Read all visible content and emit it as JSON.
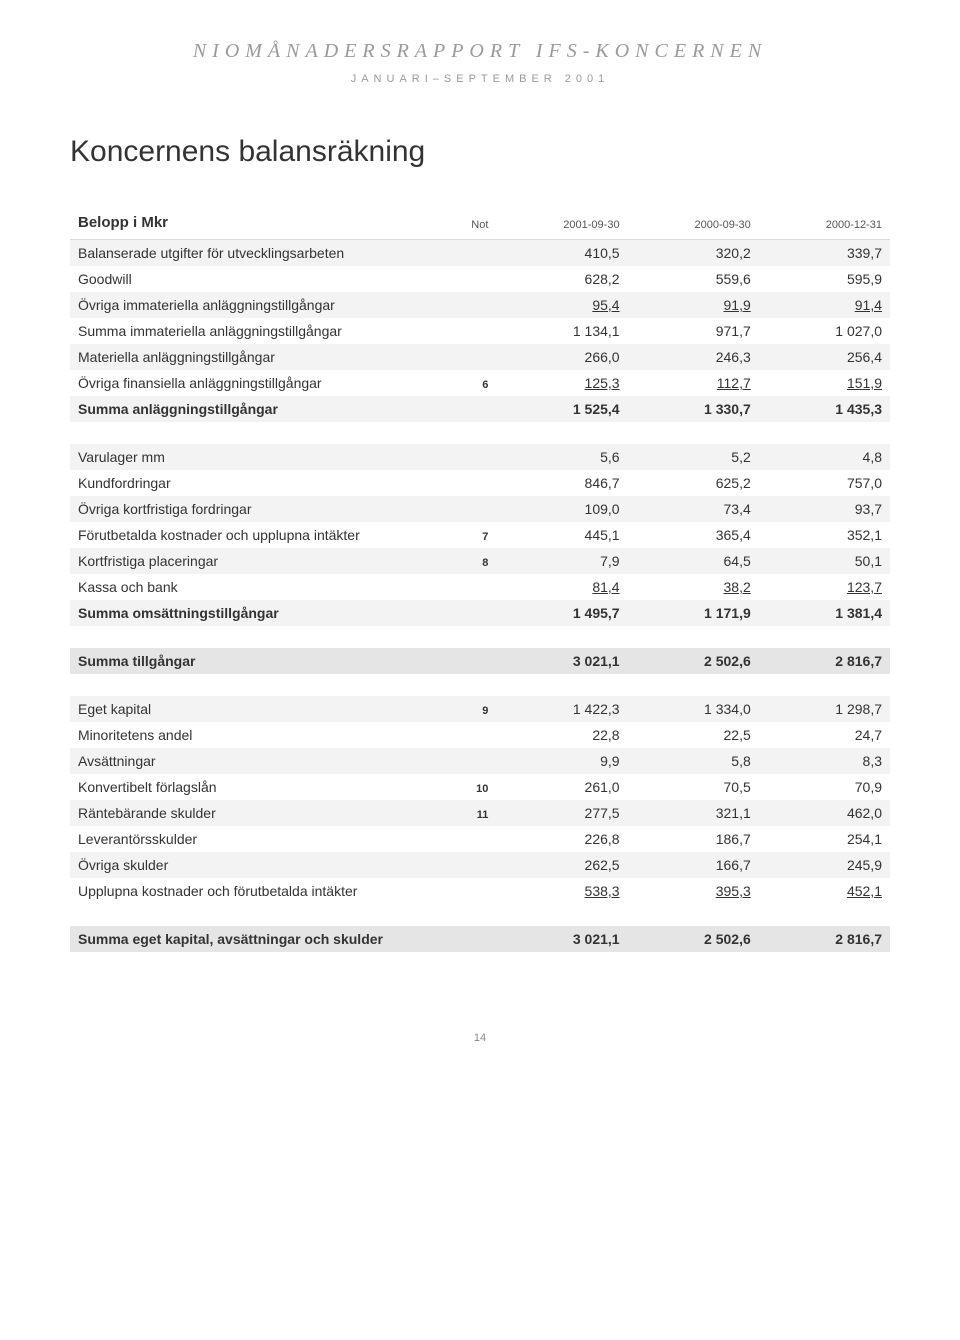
{
  "header": {
    "line1": "NIOMÅNADERSRAPPORT IFS-KONCERNEN",
    "line2": "JANUARI–SEPTEMBER 2001"
  },
  "title": "Koncernens balansräkning",
  "table": {
    "head": {
      "label": "Belopp i Mkr",
      "note": "Not",
      "c1": "2001-09-30",
      "c2": "2000-09-30",
      "c3": "2000-12-31"
    },
    "rows": [
      {
        "type": "light",
        "label": "Balanserade utgifter för utvecklingsarbeten",
        "note": "",
        "c1": "410,5",
        "c2": "320,2",
        "c3": "339,7"
      },
      {
        "type": "plain",
        "label": "Goodwill",
        "note": "",
        "c1": "628,2",
        "c2": "559,6",
        "c3": "595,9"
      },
      {
        "type": "light underline",
        "label": "Övriga immateriella anläggningstillgångar",
        "note": "",
        "c1": "95,4",
        "c2": "91,9",
        "c3": "91,4"
      },
      {
        "type": "plain",
        "label": "Summa immateriella anläggningstillgångar",
        "note": "",
        "c1": "1 134,1",
        "c2": "971,7",
        "c3": "1 027,0"
      },
      {
        "type": "light",
        "label": "Materiella anläggningstillgångar",
        "note": "",
        "c1": "266,0",
        "c2": "246,3",
        "c3": "256,4"
      },
      {
        "type": "plain underline",
        "label": "Övriga finansiella anläggningstillgångar",
        "note": "6",
        "c1": "125,3",
        "c2": "112,7",
        "c3": "151,9"
      },
      {
        "type": "light bold",
        "label": "Summa anläggningstillgångar",
        "note": "",
        "c1": "1 525,4",
        "c2": "1 330,7",
        "c3": "1 435,3"
      },
      {
        "type": "spacer"
      },
      {
        "type": "light",
        "label": "Varulager mm",
        "note": "",
        "c1": "5,6",
        "c2": "5,2",
        "c3": "4,8"
      },
      {
        "type": "plain",
        "label": "Kundfordringar",
        "note": "",
        "c1": "846,7",
        "c2": "625,2",
        "c3": "757,0"
      },
      {
        "type": "light",
        "label": "Övriga kortfristiga fordringar",
        "note": "",
        "c1": "109,0",
        "c2": "73,4",
        "c3": "93,7"
      },
      {
        "type": "plain",
        "label": "Förutbetalda kostnader och upplupna intäkter",
        "note": "7",
        "c1": "445,1",
        "c2": "365,4",
        "c3": "352,1"
      },
      {
        "type": "light",
        "label": "Kortfristiga placeringar",
        "note": "8",
        "c1": "7,9",
        "c2": "64,5",
        "c3": "50,1"
      },
      {
        "type": "plain underline",
        "label": "Kassa och bank",
        "note": "",
        "c1": "81,4",
        "c2": "38,2",
        "c3": "123,7"
      },
      {
        "type": "light bold",
        "label": "Summa omsättningstillgångar",
        "note": "",
        "c1": "1 495,7",
        "c2": "1 171,9",
        "c3": "1 381,4"
      },
      {
        "type": "spacer"
      },
      {
        "type": "subtotal",
        "label": "Summa tillgångar",
        "note": "",
        "c1": "3 021,1",
        "c2": "2 502,6",
        "c3": "2 816,7"
      },
      {
        "type": "spacer"
      },
      {
        "type": "light",
        "label": "Eget kapital",
        "note": "9",
        "c1": "1 422,3",
        "c2": "1 334,0",
        "c3": "1 298,7"
      },
      {
        "type": "plain",
        "label": "Minoritetens andel",
        "note": "",
        "c1": "22,8",
        "c2": "22,5",
        "c3": "24,7"
      },
      {
        "type": "light",
        "label": "Avsättningar",
        "note": "",
        "c1": "9,9",
        "c2": "5,8",
        "c3": "8,3"
      },
      {
        "type": "plain",
        "label": "Konvertibelt förlagslån",
        "note": "10",
        "c1": "261,0",
        "c2": "70,5",
        "c3": "70,9"
      },
      {
        "type": "light",
        "label": "Räntebärande skulder",
        "note": "11",
        "c1": "277,5",
        "c2": "321,1",
        "c3": "462,0"
      },
      {
        "type": "plain",
        "label": "Leverantörsskulder",
        "note": "",
        "c1": "226,8",
        "c2": "186,7",
        "c3": "254,1"
      },
      {
        "type": "light",
        "label": "Övriga skulder",
        "note": "",
        "c1": "262,5",
        "c2": "166,7",
        "c3": "245,9"
      },
      {
        "type": "plain underline",
        "label": "Upplupna kostnader och förutbetalda intäkter",
        "note": "",
        "c1": "538,3",
        "c2": "395,3",
        "c3": "452,1"
      },
      {
        "type": "spacer"
      },
      {
        "type": "subtotal",
        "label": "Summa eget kapital, avsättningar och skulder",
        "note": "",
        "c1": "3 021,1",
        "c2": "2 502,6",
        "c3": "2 816,7"
      }
    ]
  },
  "pageNumber": "14"
}
